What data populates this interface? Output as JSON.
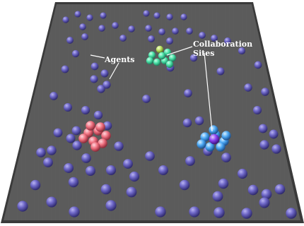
{
  "labels": {
    "agents": "Agents",
    "collaboration_line1": "Collaboration",
    "collaboration_line2": "Sites"
  },
  "colors": {
    "floor": "#5a5a5a",
    "floor_edge": "#3c3c3c",
    "agent": "#6f68c8",
    "site_green": "#49e0a6",
    "site_red": "#ee6f7e",
    "site_blue": "#4aa6f2",
    "site_purple_core": "#8a3ff0",
    "label_text": "#ffffff"
  },
  "icons": {
    "agent": "sphere-icon",
    "site": "cluster-icon"
  }
}
